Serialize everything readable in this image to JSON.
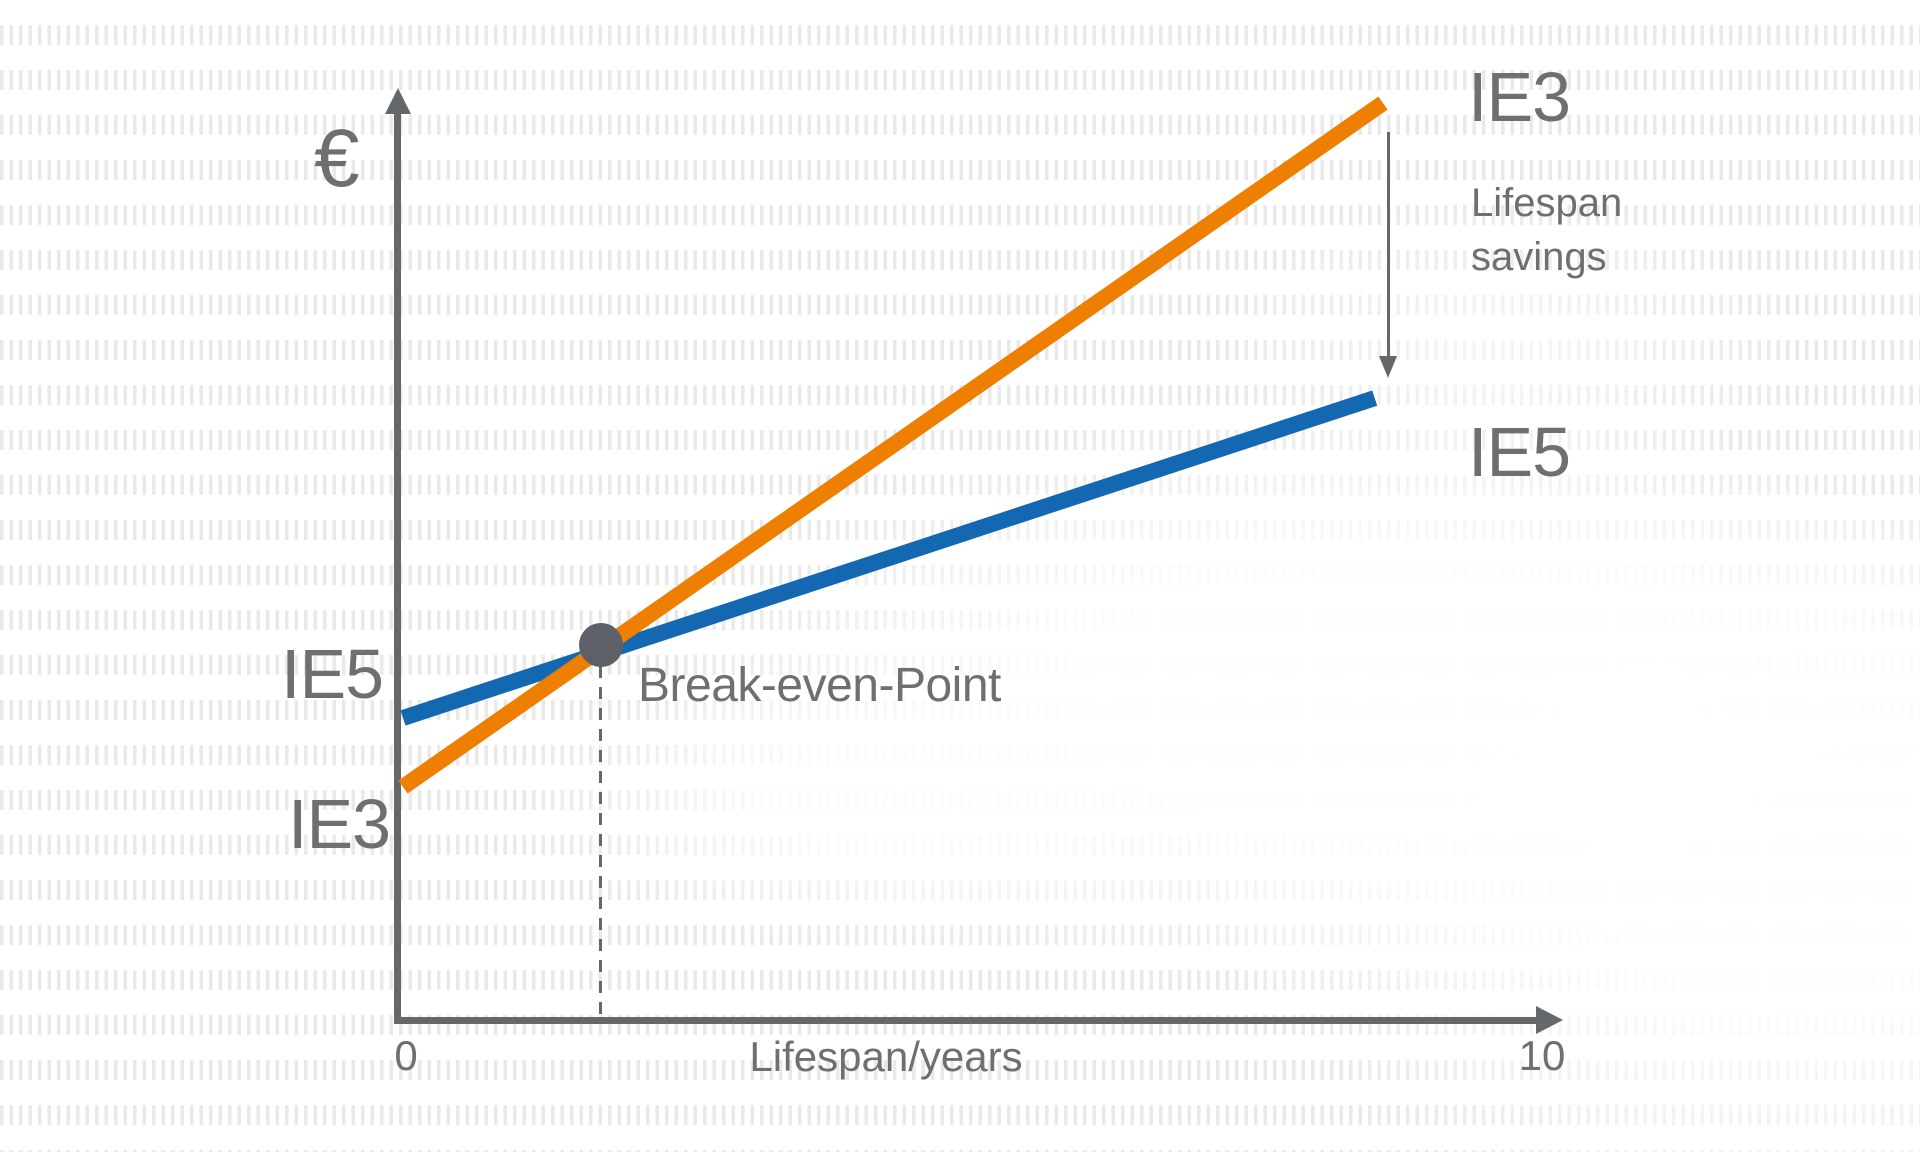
{
  "colors": {
    "ie3": "#EE7F00",
    "ie5": "#1468B1",
    "axis": "#65686B",
    "text": "#6F6F6F",
    "marker": "#5D6167",
    "pattern": "#E9E9E9",
    "background": "#FFFFFF"
  },
  "y_axis": {
    "unit_label": "€"
  },
  "x_axis": {
    "title": "Lifespan/years",
    "tick_min": "0",
    "tick_max": "10"
  },
  "series_labels": {
    "ie3_end": "IE3",
    "ie5_end": "IE5",
    "ie3_start": "IE3",
    "ie5_start": "IE5"
  },
  "annotations": {
    "break_even": "Break-even-Point",
    "savings_line1": "Lifespan",
    "savings_line2": "savings"
  },
  "chart_data": {
    "type": "line",
    "title": "",
    "xlabel": "Lifespan/years",
    "ylabel": "€",
    "x_range": [
      0,
      10
    ],
    "y_units": "relative cost, axis unlabeled (0-100 estimated from pixels)",
    "grid": false,
    "legend_position": "inline-labels-at-line-ends-and-starts",
    "series": [
      {
        "name": "IE3",
        "color": "#EE7F00",
        "points": [
          [
            0,
            25
          ],
          [
            8.6,
            100
          ]
        ]
      },
      {
        "name": "IE5",
        "color": "#1468B1",
        "points": [
          [
            0,
            33
          ],
          [
            8.5,
            68
          ]
        ]
      }
    ],
    "annotations": [
      {
        "type": "marker",
        "label": "Break-even-Point",
        "x": 1.7,
        "y": 41
      },
      {
        "type": "arrow-down",
        "label": "Lifespan savings",
        "x": 8.6,
        "y_from": 96,
        "y_to": 70
      }
    ]
  }
}
